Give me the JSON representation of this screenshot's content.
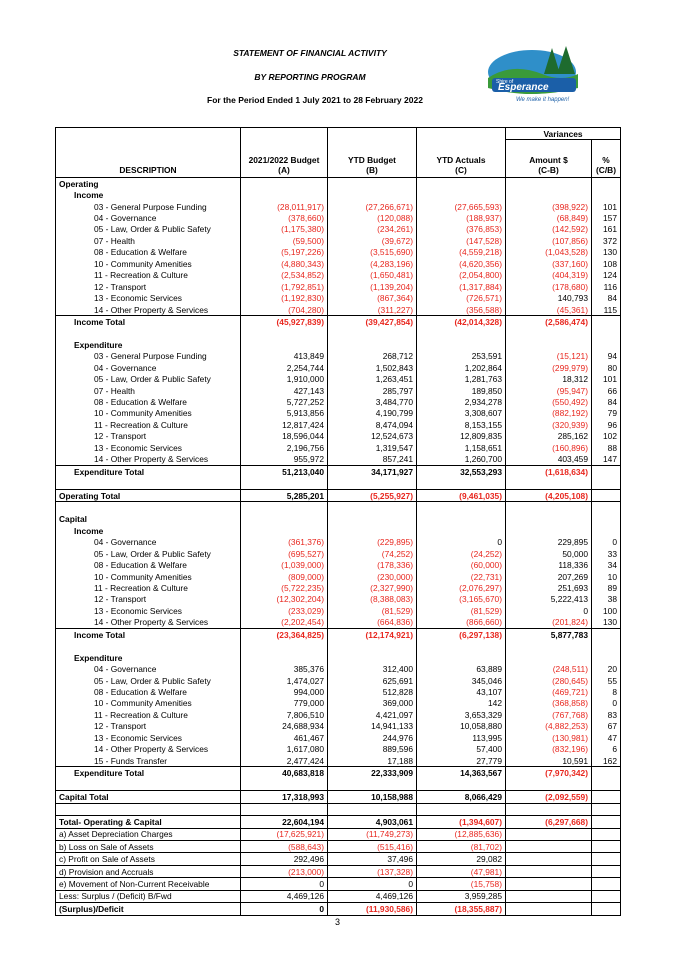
{
  "header": {
    "title": "STATEMENT OF FINANCIAL ACTIVITY",
    "subtitle": "BY REPORTING PROGRAM",
    "period": "For the Period Ended 1 July 2021 to 28 February 2022"
  },
  "logo": {
    "line1": "Shire of",
    "line2": "Esperance",
    "tagline": "We make it happen!"
  },
  "table": {
    "variances": "Variances",
    "columns": [
      {
        "label": "DESCRIPTION"
      },
      {
        "label": "2021/2022 Budget",
        "sub": "(A)"
      },
      {
        "label": "YTD Budget",
        "sub": "(B)"
      },
      {
        "label": "YTD Actuals",
        "sub": "(C)"
      },
      {
        "label": "Amount $",
        "sub": "(C-B)"
      },
      {
        "label": "%",
        "sub": "(C/B)"
      }
    ],
    "sections": [
      {
        "label": "Operating",
        "groups": [
          {
            "label": "Income",
            "rows": [
              [
                "03 - General Purpose Funding",
                "(28,011,917)",
                "(27,266,671)",
                "(27,665,593)",
                "(398,922)",
                "101"
              ],
              [
                "04 - Governance",
                "(378,660)",
                "(120,088)",
                "(188,937)",
                "(68,849)",
                "157"
              ],
              [
                "05 - Law, Order & Public Safety",
                "(1,175,380)",
                "(234,261)",
                "(376,853)",
                "(142,592)",
                "161"
              ],
              [
                "07 - Health",
                "(59,500)",
                "(39,672)",
                "(147,528)",
                "(107,856)",
                "372"
              ],
              [
                "08 - Education & Welfare",
                "(5,197,226)",
                "(3,515,690)",
                "(4,559,218)",
                "(1,043,528)",
                "130"
              ],
              [
                "10 - Community Amenities",
                "(4,880,343)",
                "(4,283,196)",
                "(4,620,356)",
                "(337,160)",
                "108"
              ],
              [
                "11 - Recreation & Culture",
                "(2,534,852)",
                "(1,650,481)",
                "(2,054,800)",
                "(404,319)",
                "124"
              ],
              [
                "12 - Transport",
                "(1,792,851)",
                "(1,139,204)",
                "(1,317,884)",
                "(178,680)",
                "116"
              ],
              [
                "13 - Economic Services",
                "(1,192,830)",
                "(867,364)",
                "(726,571)",
                "140,793",
                "84"
              ],
              [
                "14 - Other Property & Services",
                "(704,280)",
                "(311,227)",
                "(356,588)",
                "(45,361)",
                "115"
              ]
            ],
            "total": [
              "Income Total",
              "(45,927,839)",
              "(39,427,854)",
              "(42,014,328)",
              "(2,586,474)"
            ]
          },
          {
            "label": "Expenditure",
            "rows": [
              [
                "03 - General Purpose Funding",
                "413,849",
                "268,712",
                "253,591",
                "(15,121)",
                "94"
              ],
              [
                "04 - Governance",
                "2,254,744",
                "1,502,843",
                "1,202,864",
                "(299,979)",
                "80"
              ],
              [
                "05 - Law, Order & Public Safety",
                "1,910,000",
                "1,263,451",
                "1,281,763",
                "18,312",
                "101"
              ],
              [
                "07 - Health",
                "427,143",
                "285,797",
                "189,850",
                "(95,947)",
                "66"
              ],
              [
                "08 - Education & Welfare",
                "5,727,252",
                "3,484,770",
                "2,934,278",
                "(550,492)",
                "84"
              ],
              [
                "10 - Community Amenities",
                "5,913,856",
                "4,190,799",
                "3,308,607",
                "(882,192)",
                "79"
              ],
              [
                "11 - Recreation & Culture",
                "12,817,424",
                "8,474,094",
                "8,153,155",
                "(320,939)",
                "96"
              ],
              [
                "12 - Transport",
                "18,596,044",
                "12,524,673",
                "12,809,835",
                "285,162",
                "102"
              ],
              [
                "13 - Economic Services",
                "2,196,756",
                "1,319,547",
                "1,158,651",
                "(160,896)",
                "88"
              ],
              [
                "14 - Other Property & Services",
                "955,972",
                "857,241",
                "1,260,700",
                "403,459",
                "147"
              ]
            ],
            "total": [
              "Expenditure Total",
              "51,213,040",
              "34,171,927",
              "32,553,293",
              "(1,618,634)"
            ]
          }
        ],
        "total": [
          "Operating Total",
          "5,285,201",
          "(5,255,927)",
          "(9,461,035)",
          "(4,205,108)"
        ]
      },
      {
        "label": "Capital",
        "groups": [
          {
            "label": "Income",
            "rows": [
              [
                "04 - Governance",
                "(361,376)",
                "(229,895)",
                "0",
                "229,895",
                "0"
              ],
              [
                "05 - Law, Order & Public Safety",
                "(695,527)",
                "(74,252)",
                "(24,252)",
                "50,000",
                "33"
              ],
              [
                "08 - Education & Welfare",
                "(1,039,000)",
                "(178,336)",
                "(60,000)",
                "118,336",
                "34"
              ],
              [
                "10 - Community Amenities",
                "(809,000)",
                "(230,000)",
                "(22,731)",
                "207,269",
                "10"
              ],
              [
                "11 - Recreation & Culture",
                "(5,722,235)",
                "(2,327,990)",
                "(2,076,297)",
                "251,693",
                "89"
              ],
              [
                "12 - Transport",
                "(12,302,204)",
                "(8,388,083)",
                "(3,165,670)",
                "5,222,413",
                "38"
              ],
              [
                "13 - Economic Services",
                "(233,029)",
                "(81,529)",
                "(81,529)",
                "0",
                "100"
              ],
              [
                "14 - Other Property & Services",
                "(2,202,454)",
                "(664,836)",
                "(866,660)",
                "(201,824)",
                "130"
              ]
            ],
            "total": [
              "Income Total",
              "(23,364,825)",
              "(12,174,921)",
              "(6,297,138)",
              "5,877,783"
            ]
          },
          {
            "label": "Expenditure",
            "rows": [
              [
                "04 - Governance",
                "385,376",
                "312,400",
                "63,889",
                "(248,511)",
                "20"
              ],
              [
                "05 - Law, Order & Public Safety",
                "1,474,027",
                "625,691",
                "345,046",
                "(280,645)",
                "55"
              ],
              [
                "08 - Education & Welfare",
                "994,000",
                "512,828",
                "43,107",
                "(469,721)",
                "8"
              ],
              [
                "10 - Community Amenities",
                "779,000",
                "369,000",
                "142",
                "(368,858)",
                "0"
              ],
              [
                "11 - Recreation & Culture",
                "7,806,510",
                "4,421,097",
                "3,653,329",
                "(767,768)",
                "83"
              ],
              [
                "12 - Transport",
                "24,688,934",
                "14,941,133",
                "10,058,880",
                "(4,882,253)",
                "67"
              ],
              [
                "13 - Economic Services",
                "461,467",
                "244,976",
                "113,995",
                "(130,981)",
                "47"
              ],
              [
                "14 - Other Property & Services",
                "1,617,080",
                "889,596",
                "57,400",
                "(832,196)",
                "6"
              ],
              [
                "15 - Funds Transfer",
                "2,477,424",
                "17,188",
                "27,779",
                "10,591",
                "162"
              ]
            ],
            "total": [
              "Expenditure Total",
              "40,683,818",
              "22,333,909",
              "14,363,567",
              "(7,970,342)"
            ]
          }
        ],
        "total": [
          "Capital Total",
          "17,318,993",
          "10,158,988",
          "8,066,429",
          "(2,092,559)"
        ]
      }
    ],
    "summary": {
      "total": [
        "Total- Operating & Capital",
        "22,604,194",
        "4,903,061",
        "(1,394,607)",
        "(6,297,668)"
      ],
      "adjustments": [
        [
          "a) Asset Depreciation Charges",
          "(17,625,921)",
          "(11,749,273)",
          "(12,885,636)"
        ],
        [
          "b) Loss on Sale of Assets",
          "(588,643)",
          "(515,416)",
          "(81,702)"
        ],
        [
          "c) Profit on Sale of Assets",
          "292,496",
          "37,496",
          "29,082"
        ],
        [
          "d) Provision and Accruals",
          "(213,000)",
          "(137,328)",
          "(47,981)"
        ],
        [
          "e) Movement of Non-Current Receivable",
          "0",
          "0",
          "(15,758)"
        ],
        [
          "Less: Surplus / (Deficit) B/Fwd",
          "4,469,126",
          "4,469,126",
          "3,959,285"
        ]
      ],
      "result": [
        "(Surplus)/Deficit",
        "0",
        "(11,930,586)",
        "(18,355,887)"
      ]
    }
  },
  "page_number": "3"
}
